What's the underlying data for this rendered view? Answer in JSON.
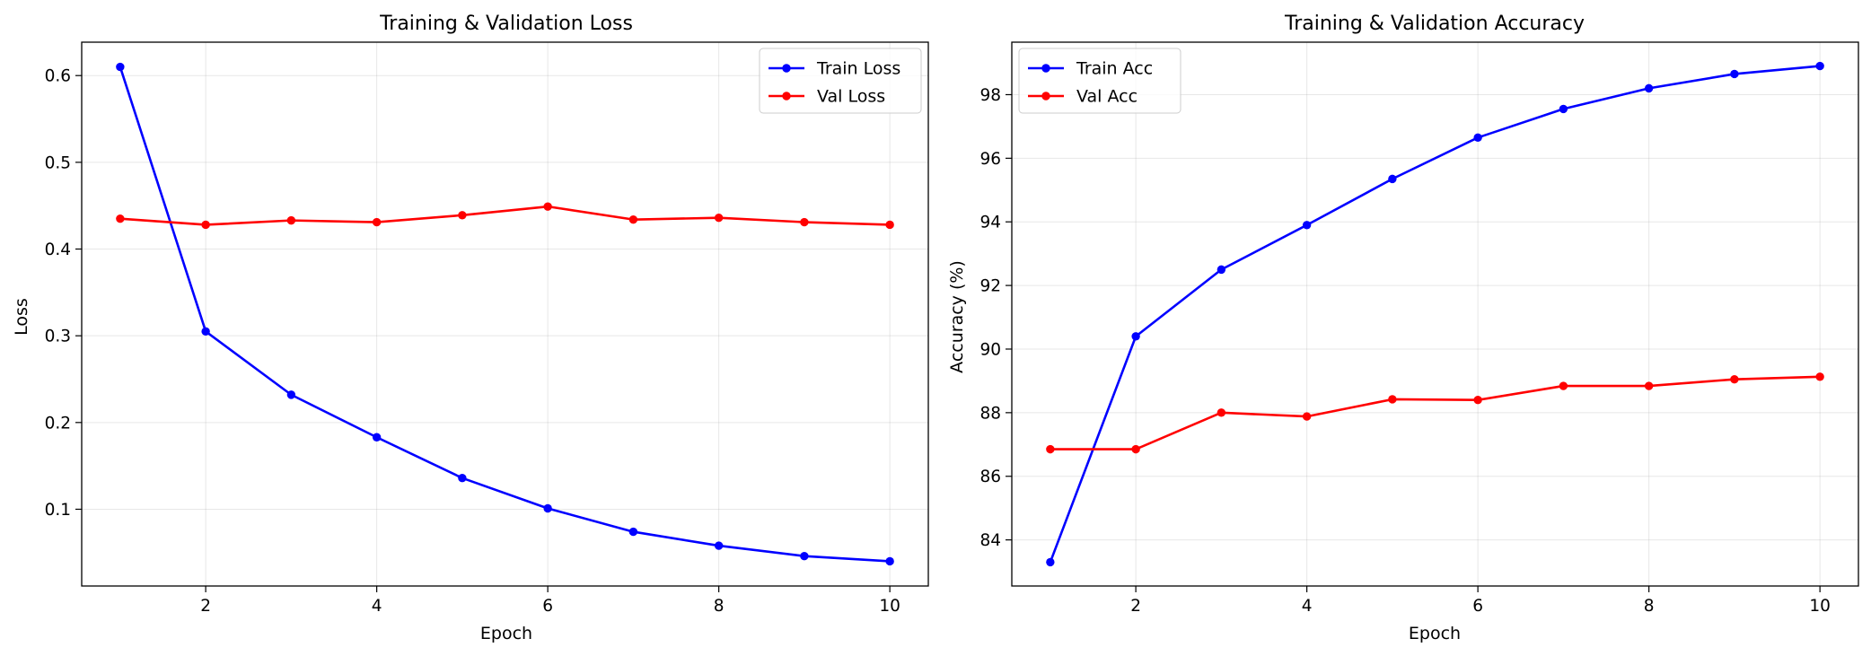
{
  "chart_data": [
    {
      "type": "line",
      "title": "Training & Validation Loss",
      "xlabel": "Epoch",
      "ylabel": "Loss",
      "x": [
        1,
        2,
        3,
        4,
        5,
        6,
        7,
        8,
        9,
        10
      ],
      "xlim": [
        0.55,
        10.45
      ],
      "ylim": [
        0.0115,
        0.6385
      ],
      "xticks": [
        2,
        4,
        6,
        8,
        10
      ],
      "xtick_labels": [
        "2",
        "4",
        "6",
        "8",
        "10"
      ],
      "yticks": [
        0.1,
        0.2,
        0.3,
        0.4,
        0.5,
        0.6
      ],
      "ytick_labels": [
        "0.1",
        "0.2",
        "0.3",
        "0.4",
        "0.5",
        "0.6"
      ],
      "grid": true,
      "legend_position": "top-right",
      "series": [
        {
          "name": "Train Loss",
          "color": "#0000ff",
          "marker": "circle",
          "values": [
            0.61,
            0.305,
            0.232,
            0.183,
            0.136,
            0.101,
            0.074,
            0.058,
            0.046,
            0.04
          ]
        },
        {
          "name": "Val Loss",
          "color": "#ff0000",
          "marker": "circle",
          "values": [
            0.435,
            0.428,
            0.433,
            0.431,
            0.439,
            0.449,
            0.434,
            0.436,
            0.431,
            0.428
          ]
        }
      ]
    },
    {
      "type": "line",
      "title": "Training & Validation Accuracy",
      "xlabel": "Epoch",
      "ylabel": "Accuracy (%)",
      "x": [
        1,
        2,
        3,
        4,
        5,
        6,
        7,
        8,
        9,
        10
      ],
      "xlim": [
        0.55,
        10.45
      ],
      "ylim": [
        82.55,
        99.65
      ],
      "xticks": [
        2,
        4,
        6,
        8,
        10
      ],
      "xtick_labels": [
        "2",
        "4",
        "6",
        "8",
        "10"
      ],
      "yticks": [
        84,
        86,
        88,
        90,
        92,
        94,
        96,
        98
      ],
      "ytick_labels": [
        "84",
        "86",
        "88",
        "90",
        "92",
        "94",
        "96",
        "98"
      ],
      "grid": true,
      "legend_position": "top-left",
      "series": [
        {
          "name": "Train Acc",
          "color": "#0000ff",
          "marker": "circle",
          "values": [
            83.3,
            90.4,
            92.5,
            93.9,
            95.35,
            96.65,
            97.55,
            98.2,
            98.65,
            98.9
          ]
        },
        {
          "name": "Val Acc",
          "color": "#ff0000",
          "marker": "circle",
          "values": [
            86.85,
            86.85,
            88.0,
            87.88,
            88.42,
            88.4,
            88.84,
            88.84,
            89.05,
            89.13
          ]
        }
      ]
    }
  ]
}
